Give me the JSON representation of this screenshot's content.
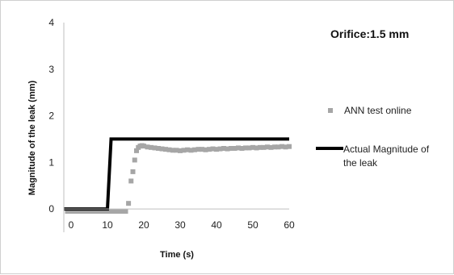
{
  "chart_data": {
    "type": "line",
    "title": "Orifice:1.5 mm",
    "xlabel": "Time (s)",
    "ylabel": "Magnitude of the leak (mm)",
    "xlim": [
      -2,
      60
    ],
    "ylim": [
      -0.5,
      4
    ],
    "x_ticks": [
      0,
      10,
      20,
      30,
      40,
      50,
      60
    ],
    "y_ticks": [
      0,
      1,
      2,
      3,
      4
    ],
    "grid": false,
    "legend_position": "right",
    "series": [
      {
        "name": "ANN test online",
        "style": "markers",
        "color": "#a6a6a6",
        "x": [
          -1,
          0,
          1,
          2,
          3,
          4,
          5,
          6,
          7,
          8,
          9,
          10,
          11,
          12,
          13,
          14,
          15,
          15.8,
          16.5,
          17,
          17.5,
          18,
          18.5,
          19,
          19.5,
          20,
          21,
          22,
          23,
          24,
          25,
          26,
          27,
          28,
          29,
          30,
          31,
          32,
          33,
          34,
          35,
          36,
          37,
          38,
          39,
          40,
          41,
          42,
          43,
          44,
          45,
          46,
          47,
          48,
          49,
          50,
          51,
          52,
          53,
          54,
          55,
          56,
          57,
          58,
          59,
          60
        ],
        "y": [
          -0.05,
          -0.05,
          -0.05,
          -0.05,
          -0.05,
          -0.05,
          -0.05,
          -0.05,
          -0.05,
          -0.05,
          -0.05,
          -0.05,
          -0.05,
          -0.05,
          -0.05,
          -0.05,
          -0.05,
          0.12,
          0.6,
          0.8,
          1.05,
          1.25,
          1.32,
          1.35,
          1.36,
          1.35,
          1.33,
          1.32,
          1.31,
          1.3,
          1.29,
          1.28,
          1.27,
          1.26,
          1.26,
          1.25,
          1.26,
          1.27,
          1.26,
          1.27,
          1.28,
          1.28,
          1.27,
          1.28,
          1.29,
          1.28,
          1.29,
          1.3,
          1.29,
          1.3,
          1.3,
          1.31,
          1.3,
          1.31,
          1.31,
          1.32,
          1.31,
          1.32,
          1.32,
          1.33,
          1.32,
          1.33,
          1.33,
          1.34,
          1.33,
          1.34
        ]
      },
      {
        "name": "Actual Magnitude of the leak",
        "style": "line",
        "color": "#000000",
        "x": [
          -2,
          10,
          11,
          60
        ],
        "y": [
          0,
          0,
          1.5,
          1.5
        ]
      }
    ]
  }
}
